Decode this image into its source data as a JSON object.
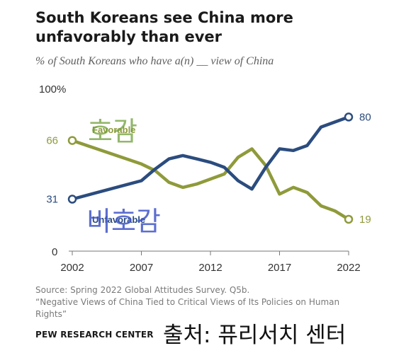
{
  "header": {
    "title": "South Koreans see China more unfavorably than ever",
    "subtitle": "% of South Koreans who have a(n) __ view of China"
  },
  "footer": {
    "source_line": "Source: Spring 2022 Global Attitudes Survey. Q5b.",
    "report_line": "“Negative Views of China Tied to Critical Views of Its Policies on Human Rights”",
    "brand": "PEW RESEARCH CENTER",
    "korean_credit": "출처: 퓨리서치 센터"
  },
  "chart_data": {
    "type": "line",
    "x": [
      2002,
      2007,
      2008,
      2009,
      2010,
      2011,
      2012,
      2013,
      2014,
      2015,
      2016,
      2017,
      2018,
      2019,
      2020,
      2021,
      2022
    ],
    "series": [
      {
        "name": "Favorable",
        "overlay_label": "호감",
        "color": "#8f9a3a",
        "values": [
          66,
          52,
          48,
          41,
          38,
          40,
          43,
          46,
          56,
          61,
          51,
          34,
          38,
          35,
          27,
          24,
          19
        ]
      },
      {
        "name": "Unfavorable",
        "overlay_label": "비호감",
        "color": "#2b4c7e",
        "values": [
          31,
          42,
          49,
          55,
          57,
          55,
          53,
          50,
          42,
          37,
          50,
          61,
          60,
          63,
          74,
          77,
          80
        ]
      }
    ],
    "xticks": [
      "2002",
      "2007",
      "2012",
      "2017",
      "2022"
    ],
    "ytick_labels": {
      "top": "100%",
      "zero": "0"
    },
    "start_labels": [
      "66",
      "31"
    ],
    "end_labels": [
      "19",
      "80"
    ],
    "ylim": [
      0,
      100
    ],
    "xlim": [
      2002,
      2022
    ],
    "grid": false
  }
}
